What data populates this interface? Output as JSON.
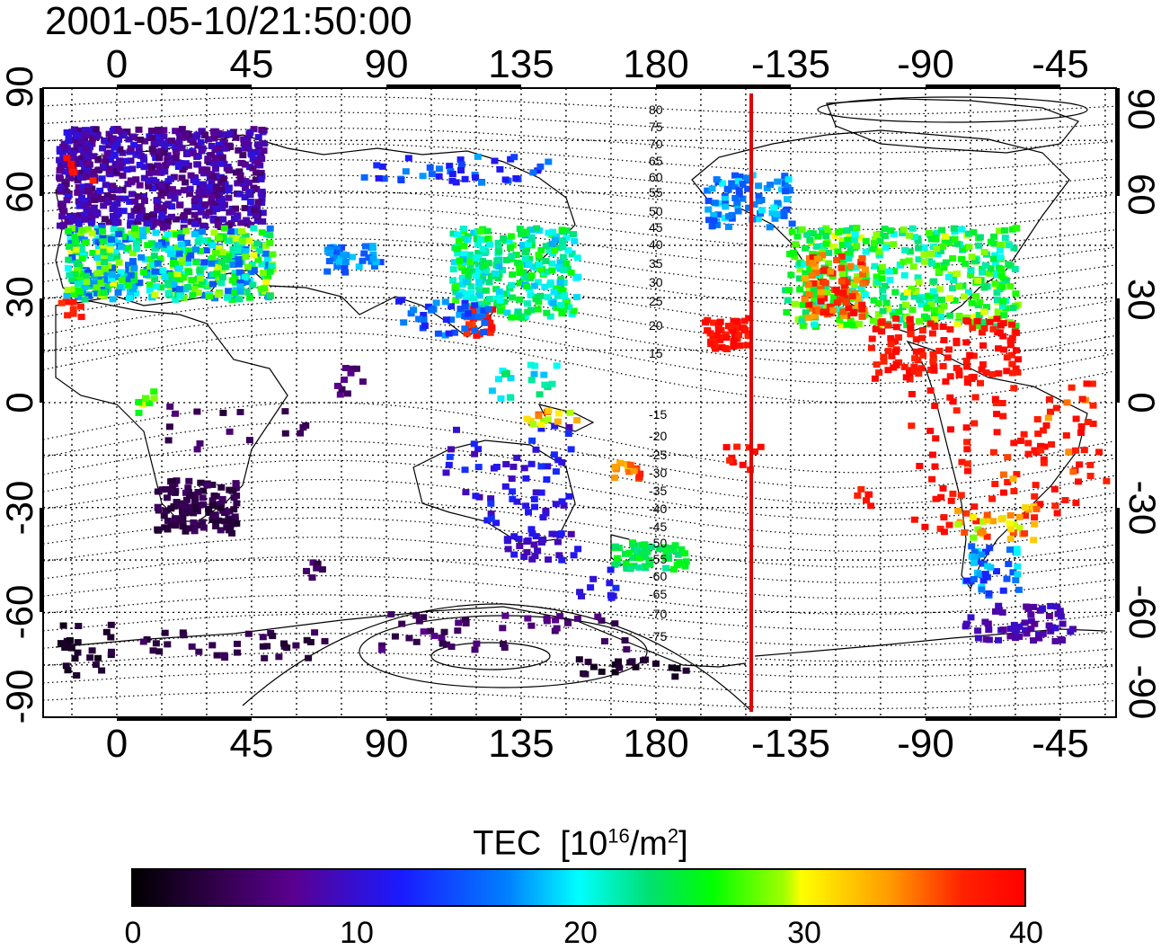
{
  "title": "2001-05-10/21:50:00",
  "map": {
    "lon_ticks": [
      "0",
      "45",
      "90",
      "135",
      "180",
      "-135",
      "-90",
      "-45"
    ],
    "lat_ticks": [
      "90",
      "60",
      "30",
      "0",
      "-30",
      "-60",
      "-90"
    ],
    "contour_labels_north": [
      "80",
      "75",
      "70",
      "65",
      "60",
      "55",
      "50",
      "45",
      "40",
      "35",
      "30",
      "25",
      "20",
      "15"
    ],
    "contour_labels_south": [
      "-15",
      "-20",
      "-25",
      "-30",
      "-35",
      "-40",
      "-45",
      "-50",
      "-55",
      "-60",
      "-65",
      "-70",
      "-75"
    ],
    "colors": {
      "terminator": "#e00000"
    }
  },
  "colorbar": {
    "title": "TEC",
    "unit_prefix": "[10",
    "unit_exp1": "16",
    "unit_mid": "/m",
    "unit_exp2": "2",
    "unit_suffix": "]",
    "ticks": [
      "0",
      "10",
      "20",
      "30",
      "40"
    ]
  }
}
